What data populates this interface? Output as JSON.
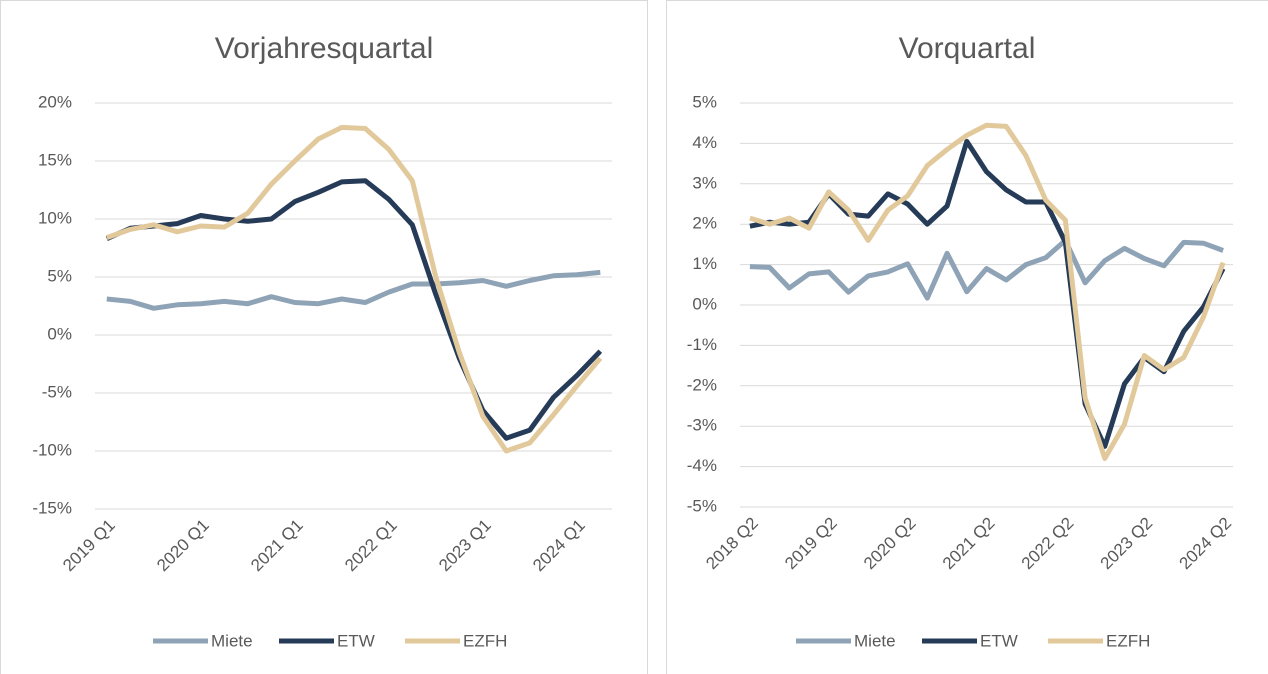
{
  "chart_data": [
    {
      "type": "line",
      "title": "Vorjahresquartal",
      "categories": [
        "2019 Q1",
        null,
        null,
        null,
        "2020 Q1",
        null,
        null,
        null,
        "2021 Q1",
        null,
        null,
        null,
        "2022 Q1",
        null,
        null,
        null,
        "2023 Q1",
        null,
        null,
        null,
        "2024 Q1",
        null
      ],
      "series": [
        {
          "name": "Miete",
          "color": "#8fa3b6",
          "values": [
            3.1,
            2.9,
            2.3,
            2.6,
            2.7,
            2.9,
            2.7,
            3.3,
            2.8,
            2.7,
            3.1,
            2.8,
            3.7,
            4.4,
            4.4,
            4.5,
            4.7,
            4.2,
            4.7,
            5.1,
            5.2,
            5.4
          ]
        },
        {
          "name": "ETW",
          "color": "#253b57",
          "values": [
            8.3,
            9.2,
            9.4,
            9.6,
            10.3,
            10.0,
            9.8,
            10.0,
            11.5,
            12.3,
            13.2,
            13.3,
            11.7,
            9.5,
            3.5,
            -2.0,
            -6.5,
            -8.9,
            -8.2,
            -5.4,
            -3.5,
            -1.4
          ]
        },
        {
          "name": "EZFH",
          "color": "#e2c99b",
          "values": [
            8.4,
            9.1,
            9.5,
            8.9,
            9.4,
            9.3,
            10.5,
            13.0,
            15.0,
            16.9,
            17.9,
            17.8,
            16.0,
            13.3,
            5.0,
            -1.5,
            -7.0,
            -10.0,
            -9.3,
            -6.9,
            -4.4,
            -2.0
          ]
        }
      ],
      "ylim": [
        -15,
        20
      ],
      "yticks": [
        {
          "value": -15,
          "label": "-15%"
        },
        {
          "value": -10,
          "label": "-10%"
        },
        {
          "value": -5,
          "label": "-5%"
        },
        {
          "value": 0,
          "label": "0%"
        },
        {
          "value": 5,
          "label": "5%"
        },
        {
          "value": 10,
          "label": "10%"
        },
        {
          "value": 15,
          "label": "15%"
        },
        {
          "value": 20,
          "label": "20%"
        }
      ],
      "grid": true,
      "legend": "bottom"
    },
    {
      "type": "line",
      "title": "Vorquartal",
      "categories": [
        "2018 Q2",
        null,
        null,
        null,
        "2019 Q2",
        null,
        null,
        null,
        "2020 Q2",
        null,
        null,
        null,
        "2021 Q2",
        null,
        null,
        null,
        "2022 Q2",
        null,
        null,
        null,
        "2023 Q2",
        null,
        null,
        null,
        "2024 Q2"
      ],
      "series": [
        {
          "name": "Miete",
          "color": "#8fa3b6",
          "values": [
            0.95,
            0.93,
            0.42,
            0.77,
            0.82,
            0.32,
            0.72,
            0.82,
            1.02,
            0.17,
            1.28,
            0.33,
            0.9,
            0.62,
            1.0,
            1.17,
            1.6,
            0.55,
            1.1,
            1.4,
            1.15,
            0.97,
            1.55,
            1.53,
            1.35
          ]
        },
        {
          "name": "ETW",
          "color": "#253b57",
          "values": [
            1.95,
            2.05,
            2.0,
            2.05,
            2.75,
            2.25,
            2.2,
            2.75,
            2.5,
            2.0,
            2.45,
            4.05,
            3.3,
            2.85,
            2.55,
            2.55,
            1.55,
            -2.45,
            -3.5,
            -1.95,
            -1.3,
            -1.65,
            -0.65,
            -0.05,
            0.9
          ]
        },
        {
          "name": "EZFH",
          "color": "#e2c99b",
          "values": [
            2.15,
            2.0,
            2.15,
            1.9,
            2.8,
            2.35,
            1.6,
            2.35,
            2.7,
            3.45,
            3.85,
            4.2,
            4.45,
            4.42,
            3.7,
            2.6,
            2.1,
            -2.3,
            -3.8,
            -2.95,
            -1.25,
            -1.6,
            -1.3,
            -0.3,
            1.05
          ]
        }
      ],
      "ylim": [
        -5,
        5
      ],
      "yticks": [
        {
          "value": -5,
          "label": "-5%"
        },
        {
          "value": -4,
          "label": "-4%"
        },
        {
          "value": -3,
          "label": "-3%"
        },
        {
          "value": -2,
          "label": "-2%"
        },
        {
          "value": -1,
          "label": "-1%"
        },
        {
          "value": 0,
          "label": "0%"
        },
        {
          "value": 1,
          "label": "1%"
        },
        {
          "value": 2,
          "label": "2%"
        },
        {
          "value": 3,
          "label": "3%"
        },
        {
          "value": 4,
          "label": "4%"
        },
        {
          "value": 5,
          "label": "5%"
        }
      ],
      "grid": true,
      "legend": "bottom"
    }
  ]
}
